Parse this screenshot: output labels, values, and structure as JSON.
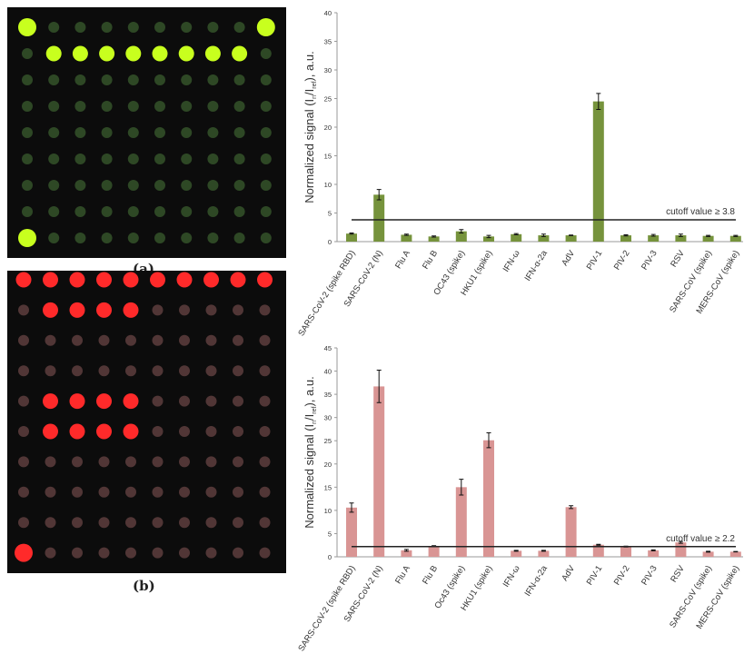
{
  "panels": [
    {
      "caption": "(a)"
    },
    {
      "caption": "(b)"
    }
  ],
  "chart_data": [
    {
      "type": "bar",
      "ylabel": "Normalized signal (In/Iref), a.u.",
      "ylim": [
        0,
        40
      ],
      "yticks": [
        "0",
        "5",
        "10",
        "15",
        "20",
        "25",
        "30",
        "35",
        "40"
      ],
      "categories": [
        "SARS-CoV-2 (spike RBD)",
        "SARS-CoV-2 (N)",
        "Flu A",
        "Flu B",
        "OC43 (spike)",
        "HKU1 (spike)",
        "IFN-ω",
        "IFN-α-2a",
        "AdV",
        "PIV-1",
        "PIV-2",
        "PIV-3",
        "RSV",
        "SARS-CoV (spike)",
        "MERS-CoV (spike)"
      ],
      "values": [
        1.4,
        8.2,
        1.2,
        0.9,
        1.8,
        0.9,
        1.3,
        1.1,
        1.1,
        24.5,
        1.1,
        1.1,
        1.1,
        1.0,
        1.0
      ],
      "errors": [
        0.1,
        0.9,
        0.1,
        0.1,
        0.3,
        0.2,
        0.1,
        0.2,
        0.05,
        1.4,
        0.1,
        0.15,
        0.2,
        0.1,
        0.1
      ],
      "cutoff": 3.8,
      "cutoff_label": "cutoff value ≥ 3.8",
      "color": "#76933c",
      "grid": false
    },
    {
      "type": "bar",
      "ylabel": "Normalized signal (In/Iref), a.u.",
      "ylim": [
        0,
        45
      ],
      "yticks": [
        "0",
        "5",
        "10",
        "15",
        "20",
        "25",
        "30",
        "35",
        "40",
        "45"
      ],
      "categories": [
        "SARS-CoV-2 (spike RBD)",
        "SARS-CoV-2 (N)",
        "Flu A",
        "Flu B",
        "Oc43 (spike)",
        "HKU1 (spike)",
        "IFN-ω",
        "IFN-α-2a",
        "AdV",
        "PIV-1",
        "PIV-2",
        "PIV-3",
        "RSV",
        "SARS-CoV (spike)",
        "MERS-CoV (spike)"
      ],
      "values": [
        10.6,
        36.7,
        1.4,
        2.3,
        15.0,
        25.1,
        1.3,
        1.3,
        10.7,
        2.6,
        2.2,
        1.4,
        3.1,
        1.1,
        1.1
      ],
      "errors": [
        1.0,
        3.5,
        0.2,
        0.1,
        1.7,
        1.6,
        0.1,
        0.1,
        0.3,
        0.1,
        0.1,
        0.1,
        0.2,
        0.1,
        0.05
      ],
      "cutoff": 2.2,
      "cutoff_label": "cutoff value ≥ 2.2",
      "color": "#d99594",
      "grid": false
    }
  ]
}
